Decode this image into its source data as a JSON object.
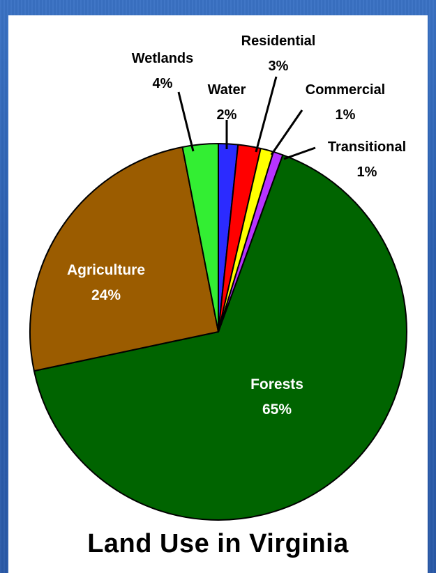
{
  "chart_data": {
    "type": "pie",
    "title": "Land Use in Virginia",
    "slices": [
      {
        "label": "Forests",
        "value": 65,
        "value_label": "65%",
        "color": "#006400"
      },
      {
        "label": "Agriculture",
        "value": 24,
        "value_label": "24%",
        "color": "#9b5c00"
      },
      {
        "label": "Wetlands",
        "value": 4,
        "value_label": "4%",
        "color": "#33ee33"
      },
      {
        "label": "Water",
        "value": 2,
        "value_label": "2%",
        "color": "#2b2bff"
      },
      {
        "label": "Residential",
        "value": 3,
        "value_label": "3%",
        "color": "#ff0000"
      },
      {
        "label": "Commercial",
        "value": 1,
        "value_label": "1%",
        "color": "#ffff00"
      },
      {
        "label": "Transitional",
        "value": 1,
        "value_label": "1%",
        "color": "#b733ff"
      }
    ]
  }
}
